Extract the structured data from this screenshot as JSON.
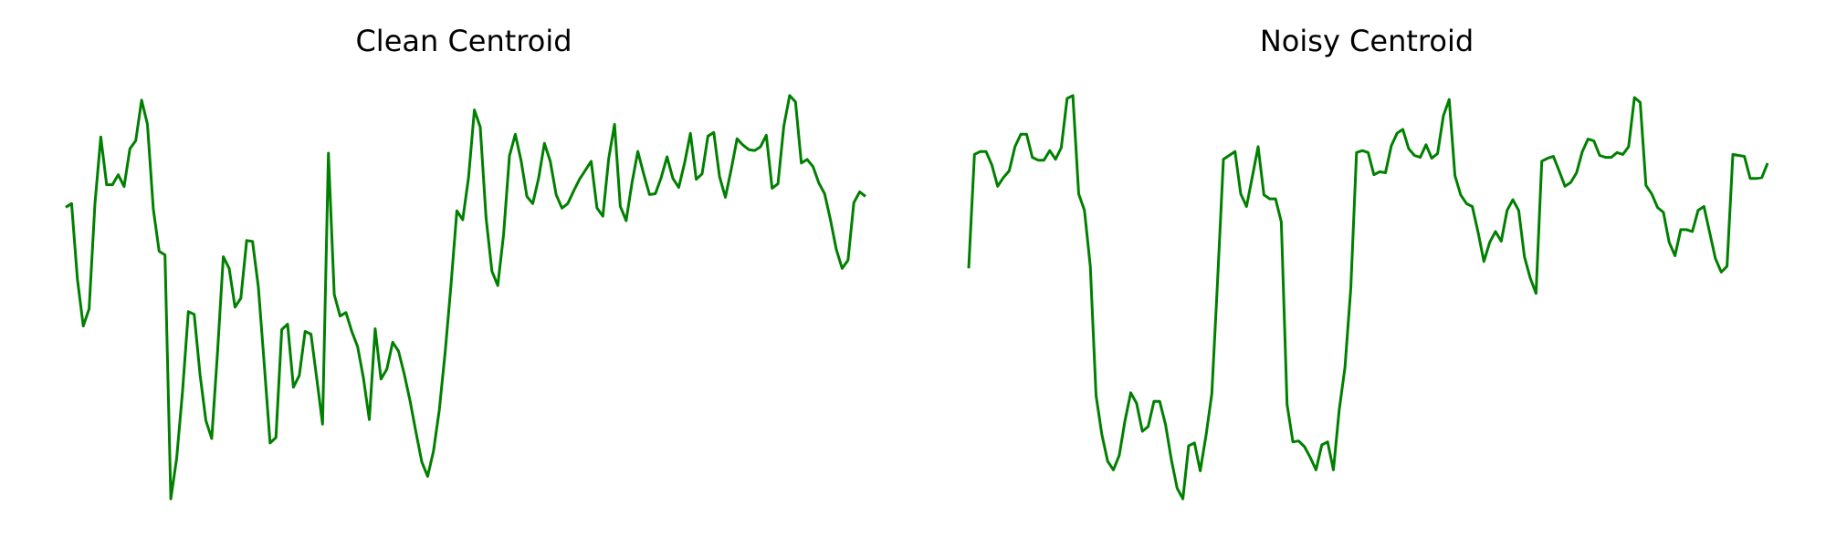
{
  "chart_data": [
    {
      "type": "line",
      "title": "Clean Centroid",
      "xlabel": "",
      "ylabel": "",
      "axes": "off",
      "grid": false,
      "color": "#008000",
      "series": [
        {
          "values": [
            0.1,
            0.14,
            -0.7,
            -1.22,
            -1.03,
            0.14,
            0.88,
            0.35,
            0.35,
            0.46,
            0.33,
            0.75,
            0.84,
            1.29,
            1.02,
            0.08,
            -0.39,
            -0.43,
            -3.14,
            -2.69,
            -1.95,
            -1.06,
            -1.09,
            -1.76,
            -2.27,
            -2.47,
            -1.52,
            -0.45,
            -0.58,
            -1.01,
            -0.91,
            -0.27,
            -0.28,
            -0.79,
            -1.64,
            -2.52,
            -2.46,
            -1.26,
            -1.2,
            -1.9,
            -1.77,
            -1.28,
            -1.31,
            -1.8,
            -2.31,
            0.7,
            -0.87,
            -1.11,
            -1.07,
            -1.28,
            -1.45,
            -1.8,
            -2.26,
            -1.25,
            -1.81,
            -1.7,
            -1.4,
            -1.5,
            -1.76,
            -2.06,
            -2.4,
            -2.73,
            -2.89,
            -2.61,
            -2.15,
            -1.51,
            -0.76,
            0.06,
            -0.04,
            0.43,
            1.18,
            0.99,
            -0.02,
            -0.61,
            -0.77,
            -0.2,
            0.67,
            0.91,
            0.62,
            0.22,
            0.14,
            0.42,
            0.81,
            0.61,
            0.24,
            0.09,
            0.14,
            0.28,
            0.41,
            0.51,
            0.61,
            0.09,
            0.0,
            0.64,
            1.02,
            0.11,
            -0.05,
            0.37,
            0.72,
            0.47,
            0.24,
            0.25,
            0.43,
            0.66,
            0.42,
            0.32,
            0.59,
            0.92,
            0.41,
            0.47,
            0.89,
            0.93,
            0.44,
            0.21,
            0.52,
            0.86,
            0.79,
            0.74,
            0.73,
            0.77,
            0.9,
            0.31,
            0.36,
            1.0,
            1.34,
            1.27,
            0.59,
            0.63,
            0.55,
            0.37,
            0.25,
            -0.04,
            -0.37,
            -0.58,
            -0.49,
            0.15,
            0.27,
            0.22
          ]
        }
      ]
    },
    {
      "type": "line",
      "title": "Noisy Centroid",
      "xlabel": "",
      "ylabel": "",
      "axes": "off",
      "grid": false,
      "color": "#008000",
      "series": [
        {
          "values": [
            -0.58,
            0.6,
            0.63,
            0.63,
            0.49,
            0.27,
            0.36,
            0.43,
            0.68,
            0.81,
            0.81,
            0.57,
            0.54,
            0.54,
            0.64,
            0.55,
            0.67,
            1.18,
            1.21,
            0.19,
            0.02,
            -0.56,
            -1.9,
            -2.3,
            -2.58,
            -2.67,
            -2.52,
            -2.16,
            -1.87,
            -1.98,
            -2.27,
            -2.22,
            -1.96,
            -1.96,
            -2.2,
            -2.56,
            -2.86,
            -2.97,
            -2.42,
            -2.39,
            -2.68,
            -2.31,
            -1.88,
            -0.71,
            0.55,
            0.59,
            0.63,
            0.19,
            0.06,
            0.37,
            0.68,
            0.18,
            0.14,
            0.14,
            -0.1,
            -1.99,
            -2.38,
            -2.37,
            -2.43,
            -2.54,
            -2.67,
            -2.41,
            -2.38,
            -2.67,
            -2.05,
            -1.61,
            -0.79,
            0.62,
            0.64,
            0.62,
            0.39,
            0.42,
            0.41,
            0.69,
            0.82,
            0.86,
            0.66,
            0.59,
            0.57,
            0.7,
            0.56,
            0.61,
            1.0,
            1.17,
            0.38,
            0.18,
            0.09,
            0.06,
            -0.21,
            -0.51,
            -0.31,
            -0.2,
            -0.3,
            0.02,
            0.13,
            0.02,
            -0.46,
            -0.68,
            -0.84,
            0.53,
            0.56,
            0.58,
            0.43,
            0.27,
            0.31,
            0.41,
            0.63,
            0.76,
            0.74,
            0.59,
            0.57,
            0.57,
            0.62,
            0.6,
            0.68,
            1.19,
            1.14,
            0.28,
            0.19,
            0.05,
            0.0,
            -0.31,
            -0.45,
            -0.18,
            -0.18,
            -0.2,
            0.02,
            0.06,
            -0.21,
            -0.48,
            -0.62,
            -0.56,
            0.6,
            0.59,
            0.58,
            0.35,
            0.35,
            0.36,
            0.51
          ]
        }
      ]
    }
  ]
}
